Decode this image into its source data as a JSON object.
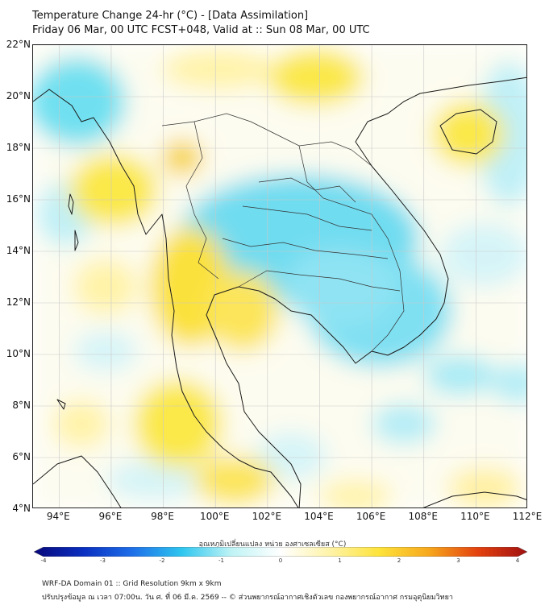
{
  "header": {
    "line1": "Temperature Change 24-hr (°C) - [Data Assimilation]",
    "line2": "Friday 06 Mar, 00 UTC FCST+048, Valid at :: Sun 08 Mar, 00 UTC"
  },
  "map": {
    "lat_labels": [
      "22°N",
      "20°N",
      "18°N",
      "16°N",
      "14°N",
      "12°N",
      "10°N",
      "8°N",
      "6°N",
      "4°N"
    ],
    "lon_labels": [
      "94°E",
      "96°E",
      "98°E",
      "100°E",
      "102°E",
      "104°E",
      "106°E",
      "108°E",
      "110°E",
      "112°E"
    ],
    "lon_range": [
      93,
      112
    ],
    "lat_range": [
      4,
      22
    ],
    "warm_regions": [
      "Myanmar west coast",
      "Southern China",
      "Hainan",
      "Western Thailand",
      "Gulf of Thailand coast",
      "Malay Peninsula"
    ],
    "cool_regions": [
      "Northeast Thailand",
      "Laos",
      "Cambodia",
      "Southern Vietnam",
      "Bay of Bengal north",
      "South China Sea east"
    ]
  },
  "colorbar": {
    "title": "อุณหภูมิเปลี่ยนแปลง หน่วย องศาเซลเซียส (°C)",
    "ticks": [
      "-4",
      "-3",
      "-2",
      "-1",
      "0",
      "1",
      "2",
      "3",
      "4"
    ],
    "range": [
      -4,
      4
    ],
    "colors": [
      "#08087a",
      "#0a2fc0",
      "#1e6fe8",
      "#2ec6ef",
      "#bff3f5",
      "#ffffff",
      "#fff3a8",
      "#fde33a",
      "#f7a81d",
      "#e3410f",
      "#a01010"
    ]
  },
  "footer": {
    "line1": "WRF-DA Domain 01 :: Grid Resolution 9km x 9km",
    "line2": "ปรับปรุงข้อมูล ณ เวลา 07:00น. วัน ศ. ที่ 06 มี.ค. 2569 -- © ส่วนพยากรณ์อากาศเชิงตัวเลข กองพยากรณ์อากาศ กรมอุตุนิยมวิทยา"
  }
}
